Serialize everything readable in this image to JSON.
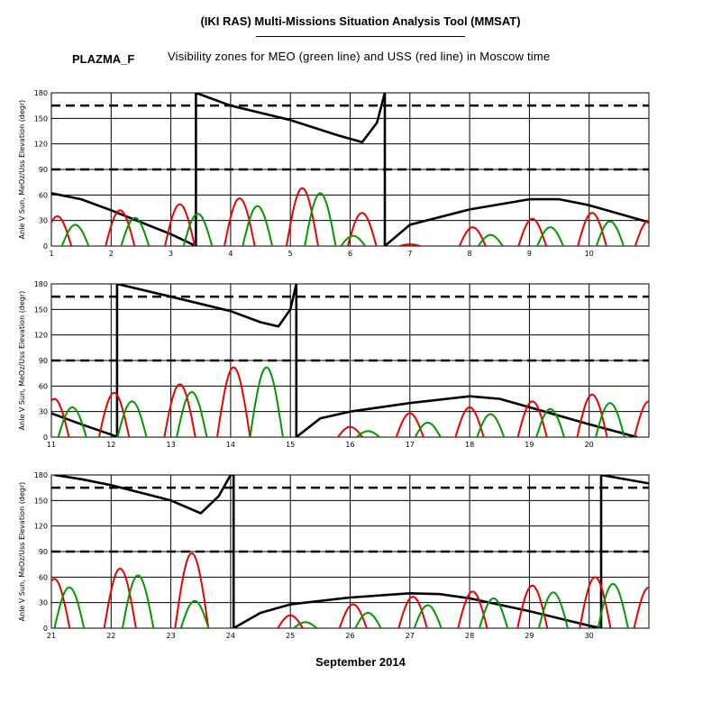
{
  "header": {
    "title": "(IKI RAS) Multi-Missions Situation Analysis Tool (MMSAT)",
    "mission": "PLAZMA_F",
    "subtitle": "Visibility zones for MEO (green line) and USS (red line) in Moscow time"
  },
  "xlabel": "September 2014",
  "colors": {
    "meo": "#009900",
    "uss": "#ee0000",
    "sun_angle": "#000000",
    "grid": "#000000"
  },
  "chart_data": [
    {
      "type": "line",
      "panel": "1-10 September",
      "x_range": [
        1,
        11
      ],
      "xticks": [
        1,
        2,
        3,
        4,
        5,
        6,
        7,
        8,
        9,
        10
      ],
      "ylabel": "Anle V Sun, MeOz/Uss Elevation (degr)",
      "ylim": [
        0,
        180
      ],
      "yticks": [
        0,
        30,
        60,
        90,
        120,
        150,
        180
      ],
      "reference_lines": [
        90,
        165
      ],
      "grid": true,
      "series": [
        {
          "kind": "angle",
          "points": [
            [
              1,
              62
            ],
            [
              1.5,
              55
            ],
            [
              2,
              42
            ],
            [
              2.5,
              28
            ],
            [
              3,
              14
            ],
            [
              3.42,
              0
            ],
            [
              3.42,
              180
            ],
            [
              4,
              165
            ],
            [
              5,
              148
            ],
            [
              5.8,
              130
            ],
            [
              6.2,
              122
            ],
            [
              6.45,
              145
            ],
            [
              6.58,
              180
            ],
            [
              6.58,
              0
            ],
            [
              7,
              25
            ],
            [
              8,
              43
            ],
            [
              9,
              55
            ],
            [
              9.5,
              55
            ],
            [
              10,
              48
            ],
            [
              11,
              28
            ]
          ]
        },
        {
          "kind": "uss",
          "passes": [
            [
              1.1,
              35
            ],
            [
              2.15,
              42
            ],
            [
              3.15,
              49
            ],
            [
              4.15,
              56
            ],
            [
              5.2,
              68
            ],
            [
              6.2,
              39
            ],
            [
              7.0,
              2
            ],
            [
              8.05,
              22
            ],
            [
              9.05,
              32
            ],
            [
              10.05,
              39
            ],
            [
              11,
              30
            ]
          ]
        },
        {
          "kind": "meo",
          "passes": [
            [
              1.4,
              25
            ],
            [
              2.4,
              33
            ],
            [
              3.45,
              38
            ],
            [
              4.45,
              47
            ],
            [
              5.5,
              62
            ],
            [
              6.05,
              12
            ],
            [
              8.35,
              13
            ],
            [
              9.35,
              22
            ],
            [
              10.35,
              29
            ]
          ]
        }
      ]
    },
    {
      "type": "line",
      "panel": "11-20 September",
      "x_range": [
        11,
        21
      ],
      "xticks": [
        11,
        12,
        13,
        14,
        15,
        16,
        17,
        18,
        19,
        20
      ],
      "ylabel": "Anle V Sun, MeOz/Uss Elevation (degr)",
      "ylim": [
        0,
        180
      ],
      "yticks": [
        0,
        30,
        60,
        90,
        120,
        150,
        180
      ],
      "reference_lines": [
        90,
        165
      ],
      "grid": true,
      "series": [
        {
          "kind": "angle",
          "points": [
            [
              11,
              28
            ],
            [
              11.5,
              15
            ],
            [
              12,
              3
            ],
            [
              12.1,
              0
            ],
            [
              12.1,
              180
            ],
            [
              13,
              165
            ],
            [
              14,
              148
            ],
            [
              14.5,
              135
            ],
            [
              14.8,
              130
            ],
            [
              15.0,
              150
            ],
            [
              15.1,
              180
            ],
            [
              15.1,
              0
            ],
            [
              15.5,
              22
            ],
            [
              16,
              30
            ],
            [
              17,
              40
            ],
            [
              18,
              48
            ],
            [
              18.5,
              45
            ],
            [
              19,
              35
            ],
            [
              20,
              15
            ],
            [
              20.8,
              0
            ]
          ]
        },
        {
          "kind": "uss",
          "passes": [
            [
              11.05,
              45
            ],
            [
              12.05,
              52
            ],
            [
              13.15,
              62
            ],
            [
              14.05,
              82
            ],
            [
              16.0,
              12
            ],
            [
              17.0,
              28
            ],
            [
              18.0,
              35
            ],
            [
              19.05,
              42
            ],
            [
              20.05,
              50
            ],
            [
              21,
              42
            ]
          ]
        },
        {
          "kind": "meo",
          "passes": [
            [
              11.35,
              35
            ],
            [
              12.35,
              42
            ],
            [
              13.35,
              53
            ],
            [
              14.6,
              82
            ],
            [
              16.3,
              7
            ],
            [
              17.3,
              17
            ],
            [
              18.35,
              27
            ],
            [
              19.35,
              33
            ],
            [
              20.35,
              40
            ]
          ]
        }
      ]
    },
    {
      "type": "line",
      "panel": "21-30 September",
      "x_range": [
        21,
        31
      ],
      "xticks": [
        21,
        22,
        23,
        24,
        25,
        26,
        27,
        28,
        29,
        30
      ],
      "ylabel": "Anle V Sun, MeOz/Uss Elevation (degr)",
      "ylim": [
        0,
        180
      ],
      "yticks": [
        0,
        30,
        60,
        90,
        120,
        150,
        180
      ],
      "reference_lines": [
        90,
        165
      ],
      "grid": true,
      "series": [
        {
          "kind": "angle",
          "points": [
            [
              21.05,
              180
            ],
            [
              21.5,
              175
            ],
            [
              22,
              168
            ],
            [
              23,
              150
            ],
            [
              23.5,
              135
            ],
            [
              23.8,
              155
            ],
            [
              24,
              180
            ],
            [
              24.05,
              180
            ],
            [
              24.05,
              0
            ],
            [
              24.5,
              18
            ],
            [
              25,
              28
            ],
            [
              26,
              36
            ],
            [
              27,
              41
            ],
            [
              27.5,
              40
            ],
            [
              28,
              35
            ],
            [
              29,
              20
            ],
            [
              30,
              3
            ],
            [
              30.2,
              0
            ],
            [
              30.2,
              180
            ],
            [
              31,
              170
            ]
          ]
        },
        {
          "kind": "uss",
          "passes": [
            [
              21.05,
              58
            ],
            [
              22.15,
              70
            ],
            [
              23.35,
              88
            ],
            [
              25.0,
              15
            ],
            [
              26.05,
              28
            ],
            [
              27.05,
              37
            ],
            [
              28.05,
              43
            ],
            [
              29.05,
              50
            ],
            [
              30.1,
              60
            ],
            [
              31,
              48
            ]
          ]
        },
        {
          "kind": "meo",
          "passes": [
            [
              21.3,
              48
            ],
            [
              22.45,
              62
            ],
            [
              23.4,
              32
            ],
            [
              25.25,
              7
            ],
            [
              26.3,
              18
            ],
            [
              27.3,
              27
            ],
            [
              28.4,
              35
            ],
            [
              29.4,
              42
            ],
            [
              30.4,
              52
            ]
          ]
        }
      ]
    }
  ]
}
